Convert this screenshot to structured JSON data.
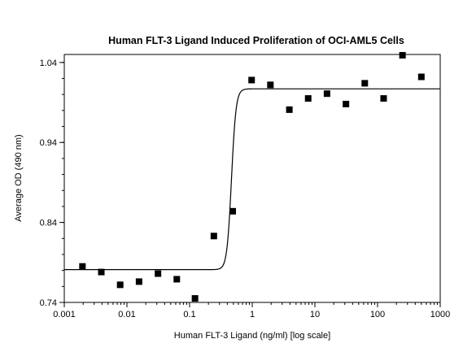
{
  "chart_data": {
    "type": "scatter",
    "title": "Human FLT-3 Ligand Induced Proliferation of OCI-AML5 Cells",
    "xlabel": "Human FLT-3 Ligand (ng/ml) [log scale]",
    "ylabel": "Average OD (490 nm)",
    "x_scale": "log",
    "xlim": [
      0.001,
      1000
    ],
    "ylim": [
      0.74,
      1.05
    ],
    "x_ticks": [
      0.001,
      0.01,
      0.1,
      1,
      10,
      100,
      1000
    ],
    "x_tick_labels": [
      "0.001",
      "0.01",
      "0.1",
      "1",
      "10",
      "100",
      "1000"
    ],
    "y_ticks": [
      0.74,
      0.84,
      0.94,
      1.04
    ],
    "y_tick_labels": [
      "0.74",
      "0.84",
      "0.94",
      "1.04"
    ],
    "grid": false,
    "series": [
      {
        "marker": "square",
        "color": "#000000",
        "points": [
          {
            "x": 0.00195,
            "y": 0.785
          },
          {
            "x": 0.0039,
            "y": 0.778
          },
          {
            "x": 0.0078,
            "y": 0.762
          },
          {
            "x": 0.0156,
            "y": 0.766
          },
          {
            "x": 0.0313,
            "y": 0.776
          },
          {
            "x": 0.0625,
            "y": 0.769
          },
          {
            "x": 0.122,
            "y": 0.745
          },
          {
            "x": 0.244,
            "y": 0.823
          },
          {
            "x": 0.488,
            "y": 0.854
          },
          {
            "x": 0.977,
            "y": 1.018
          },
          {
            "x": 1.95,
            "y": 1.012
          },
          {
            "x": 3.91,
            "y": 0.981
          },
          {
            "x": 7.81,
            "y": 0.995
          },
          {
            "x": 15.6,
            "y": 1.001
          },
          {
            "x": 31.3,
            "y": 0.988
          },
          {
            "x": 62.5,
            "y": 1.014
          },
          {
            "x": 125,
            "y": 0.995
          },
          {
            "x": 250,
            "y": 1.049
          },
          {
            "x": 500,
            "y": 1.022
          }
        ]
      },
      {
        "kind": "fit-curve",
        "color": "#000000",
        "bottom": 0.781,
        "top": 1.007,
        "ec50": 0.466,
        "hill": 12
      }
    ]
  }
}
